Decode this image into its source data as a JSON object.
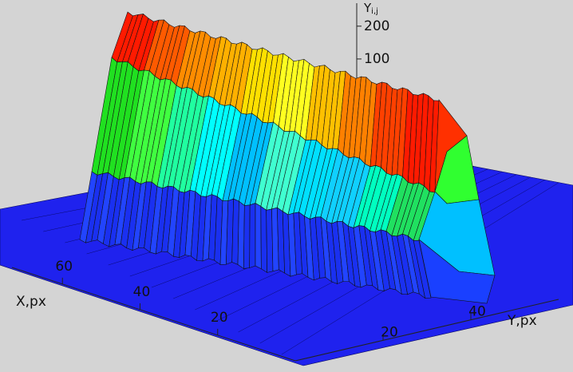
{
  "chart_data": {
    "type": "surface",
    "x_label": "X,px",
    "y_label": "Y,px",
    "z_label": "Y",
    "z_label_sub": "i,j",
    "xlim": [
      0,
      73
    ],
    "xticks": [
      20,
      40,
      60
    ],
    "ylim": [
      0,
      60
    ],
    "yticks": [
      20,
      40
    ],
    "zlim": [
      0,
      270
    ],
    "zticks": [
      100,
      200
    ]
  }
}
